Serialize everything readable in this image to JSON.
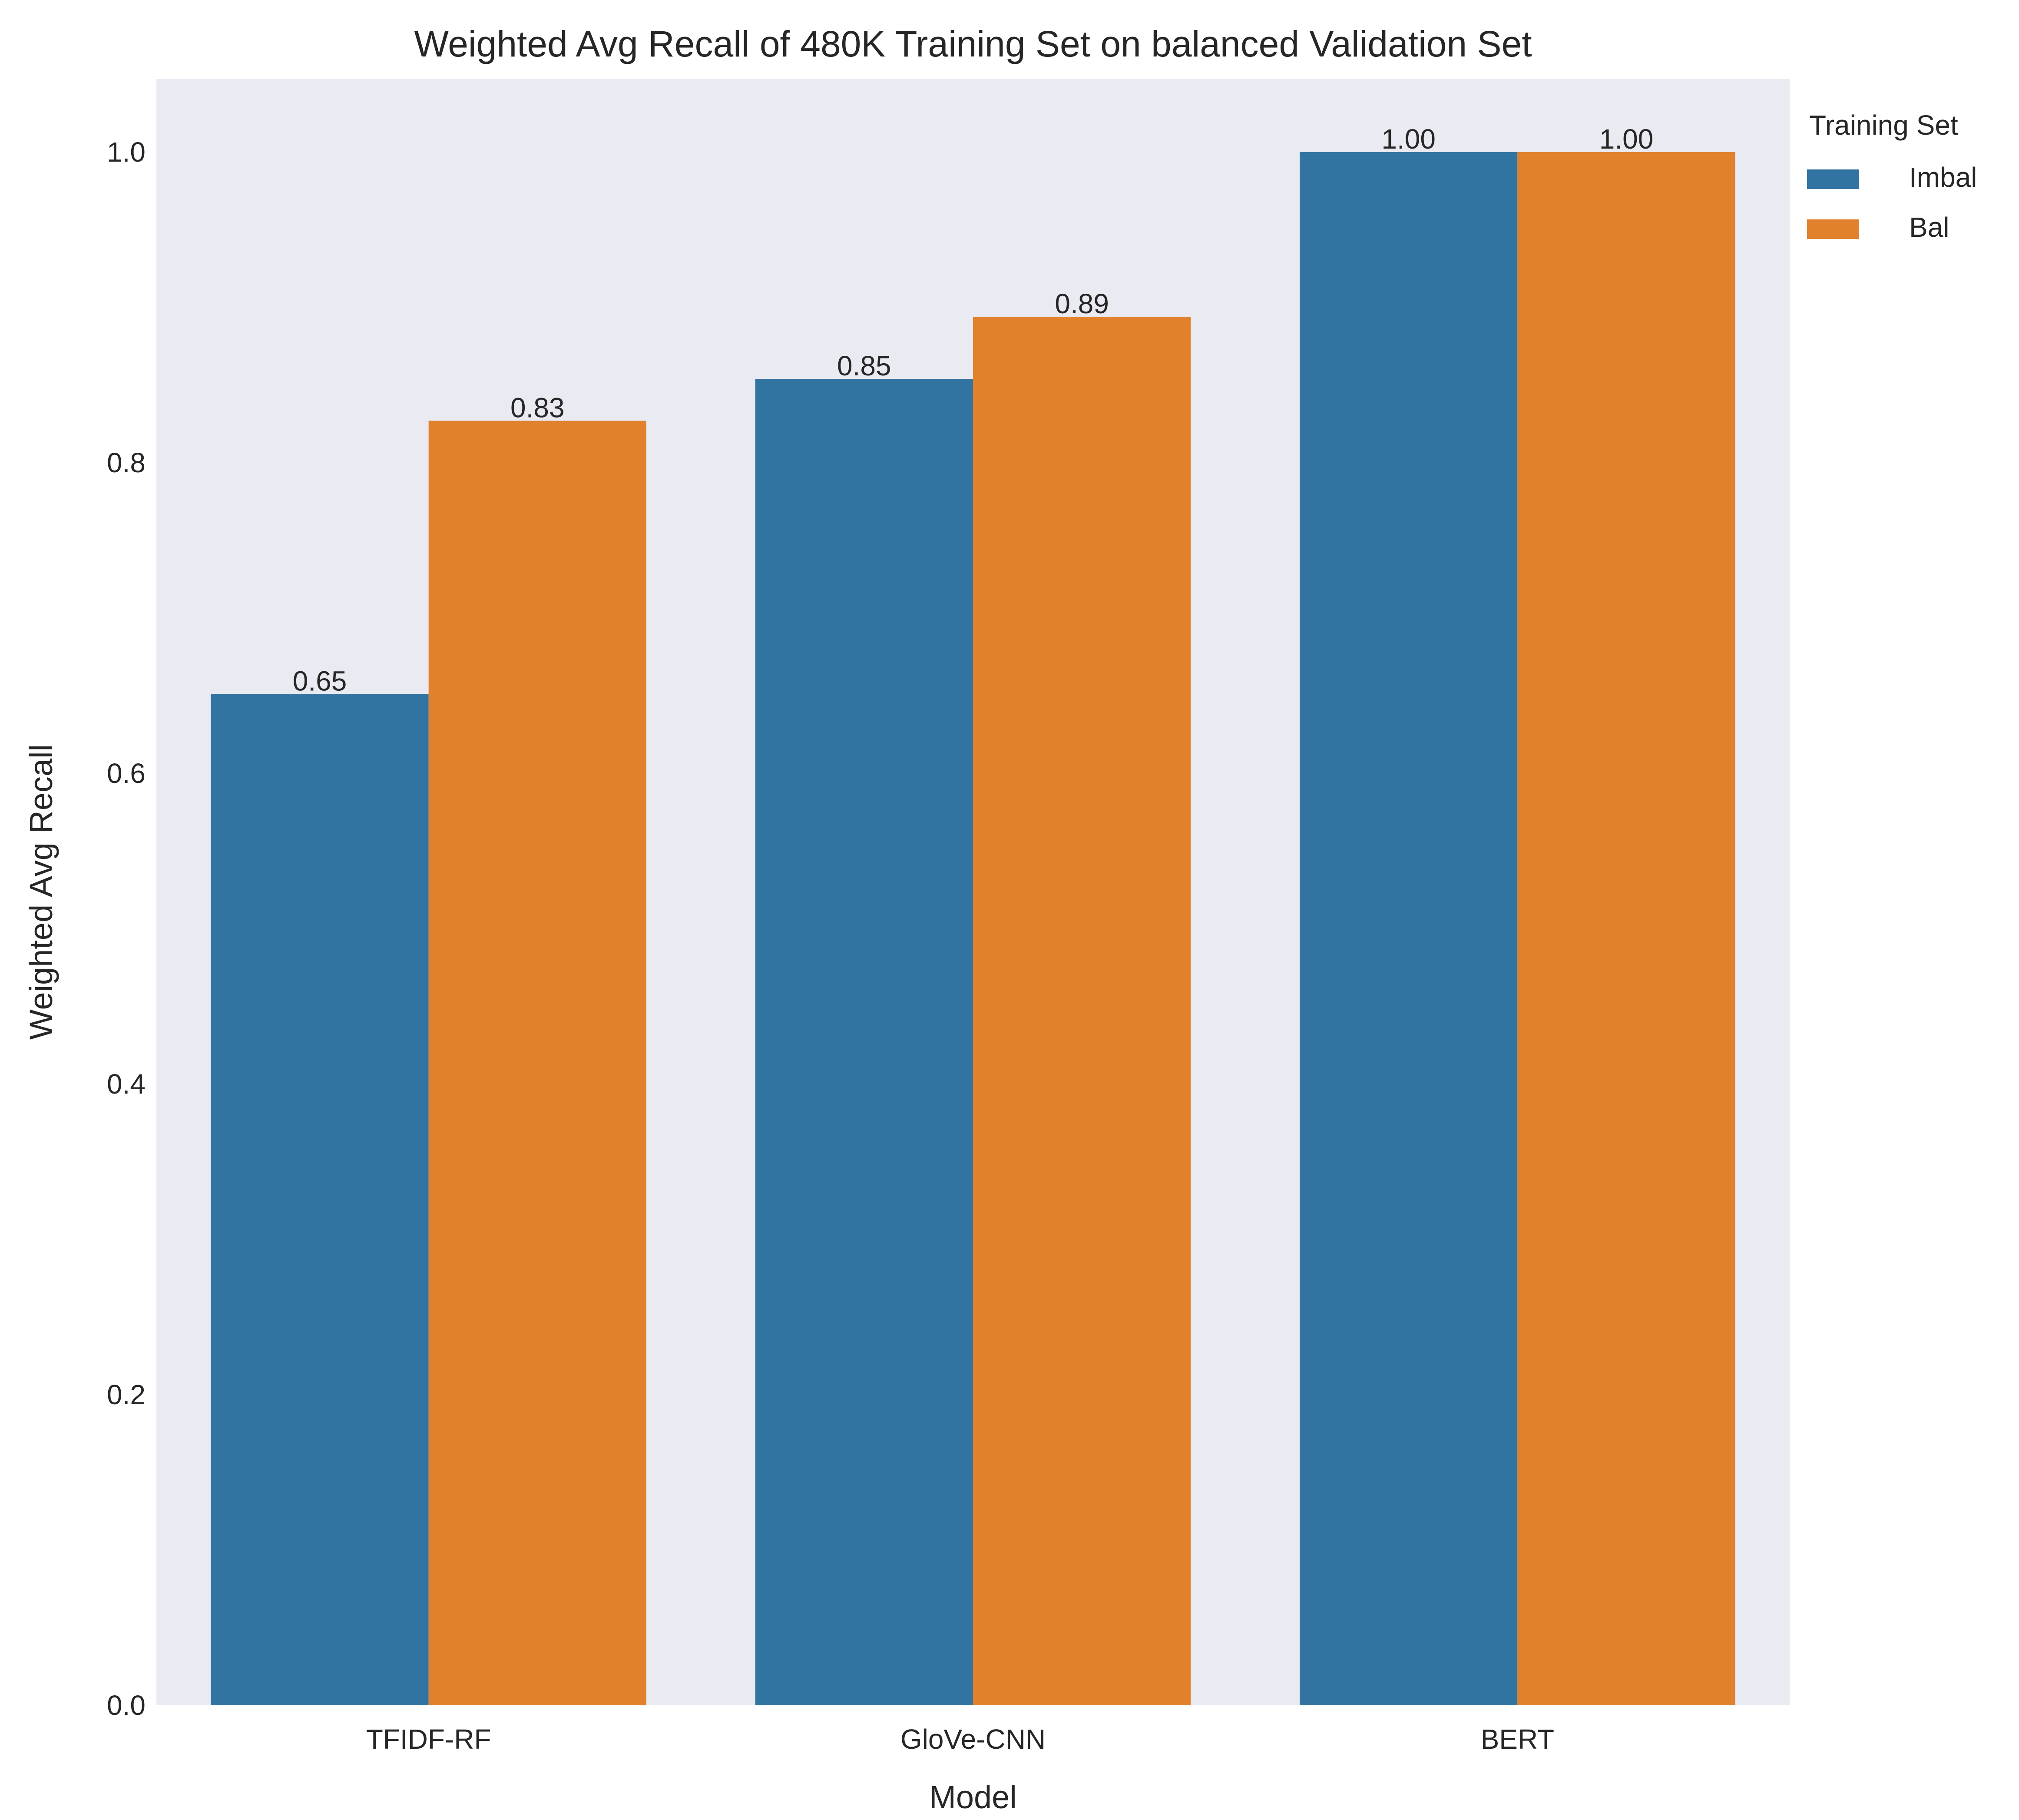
{
  "chart_data": {
    "type": "bar",
    "title": "Weighted Avg Recall of 480K Training Set on balanced Validation Set",
    "xlabel": "Model",
    "ylabel": "Weighted Avg Recall",
    "categories": [
      "TFIDF-RF",
      "GloVe-CNN",
      "BERT"
    ],
    "series": [
      {
        "name": "Imbal",
        "color": "#3274a1",
        "values": [
          0.651,
          0.854,
          1.0
        ],
        "labels": [
          "0.65",
          "0.85",
          "1.00"
        ]
      },
      {
        "name": "Bal",
        "color": "#e1812c",
        "values": [
          0.827,
          0.894,
          1.0
        ],
        "labels": [
          "0.83",
          "0.89",
          "1.00"
        ]
      }
    ],
    "ylim": [
      0,
      1.047
    ],
    "yticks": [
      0.0,
      0.2,
      0.4,
      0.6,
      0.8,
      1.0
    ],
    "ytick_labels": [
      "0.0",
      "0.2",
      "0.4",
      "0.6",
      "0.8",
      "1.0"
    ],
    "grid": false,
    "background_color": "#eaeaf2",
    "legend": {
      "title": "Training Set",
      "placement": "outside-right-top"
    }
  }
}
